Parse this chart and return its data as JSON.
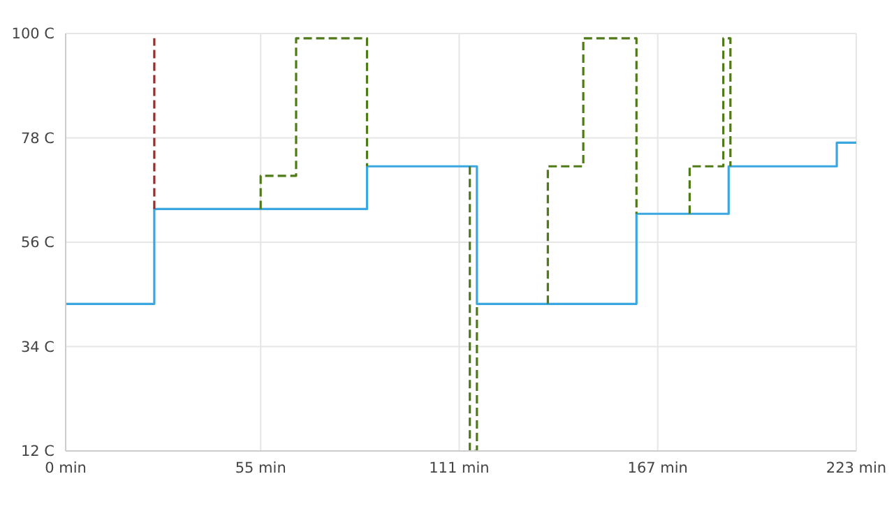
{
  "chart_data": {
    "type": "step",
    "xlim": [
      0,
      223
    ],
    "xticks": [
      {
        "value": 0,
        "label": "0 min"
      },
      {
        "value": 55,
        "label": "55 min"
      },
      {
        "value": 111,
        "label": "111 min"
      },
      {
        "value": 167,
        "label": "167 min"
      },
      {
        "value": 223,
        "label": "223 min"
      }
    ],
    "ylim": [
      12,
      100
    ],
    "yticks": [
      {
        "value": 12,
        "label": "12 C"
      },
      {
        "value": 34,
        "label": "34 C"
      },
      {
        "value": 56,
        "label": "56 C"
      },
      {
        "value": 78,
        "label": "78 C"
      },
      {
        "value": 100,
        "label": "100 C"
      }
    ],
    "grid": true,
    "legend": false,
    "marker": "none",
    "series": [
      {
        "color": "#3aa7e0",
        "line_style": "solid",
        "x": [
          0,
          25,
          85,
          116,
          161,
          187,
          217.5,
          223
        ],
        "values": [
          43,
          63,
          72,
          43,
          62,
          72,
          77,
          77
        ]
      },
      {
        "color": "#4e7a17",
        "line_style": "dashed",
        "x": [
          55,
          55,
          65,
          85
        ],
        "values": [
          63,
          70,
          99,
          72
        ]
      },
      {
        "color": "#4e7a17",
        "line_style": "dashed",
        "x": [
          114,
          114,
          116
        ],
        "values": [
          72,
          12,
          43
        ]
      },
      {
        "color": "#4e7a17",
        "line_style": "dashed",
        "x": [
          136,
          136,
          146,
          161
        ],
        "values": [
          43,
          72,
          99,
          62
        ]
      },
      {
        "color": "#4e7a17",
        "line_style": "dashed",
        "x": [
          176,
          176,
          185.5,
          187.5
        ],
        "values": [
          62,
          72,
          99,
          72
        ]
      },
      {
        "color": "#9c2b2b",
        "line_style": "dashed",
        "x": [
          25,
          25
        ],
        "values": [
          63,
          99
        ]
      }
    ]
  }
}
